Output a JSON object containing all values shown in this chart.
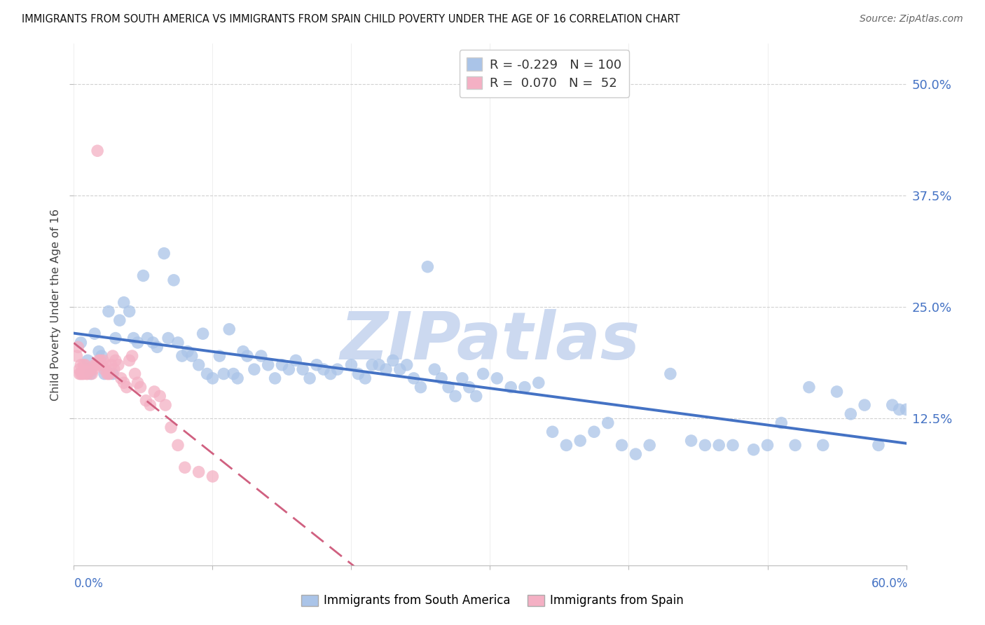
{
  "title": "IMMIGRANTS FROM SOUTH AMERICA VS IMMIGRANTS FROM SPAIN CHILD POVERTY UNDER THE AGE OF 16 CORRELATION CHART",
  "source": "Source: ZipAtlas.com",
  "ylabel": "Child Poverty Under the Age of 16",
  "ytick_labels": [
    "12.5%",
    "25.0%",
    "37.5%",
    "50.0%"
  ],
  "ytick_values": [
    0.125,
    0.25,
    0.375,
    0.5
  ],
  "xmin": 0.0,
  "xmax": 0.6,
  "ymin": -0.04,
  "ymax": 0.545,
  "color_blue": "#aac4e8",
  "color_blue_line": "#4472c4",
  "color_pink": "#f4b0c4",
  "color_pink_line": "#d06080",
  "watermark": "ZIPatlas",
  "watermark_color": "#ccd9f0",
  "legend_label1": "Immigrants from South America",
  "legend_label2": "Immigrants from Spain",
  "legend_r1": "-0.229",
  "legend_n1": "100",
  "legend_r2": "0.070",
  "legend_n2": "52",
  "blue_scatter_x": [
    0.005,
    0.01,
    0.012,
    0.015,
    0.018,
    0.02,
    0.022,
    0.025,
    0.028,
    0.03,
    0.033,
    0.036,
    0.04,
    0.043,
    0.046,
    0.05,
    0.053,
    0.057,
    0.06,
    0.065,
    0.068,
    0.072,
    0.075,
    0.078,
    0.082,
    0.085,
    0.09,
    0.093,
    0.096,
    0.1,
    0.105,
    0.108,
    0.112,
    0.115,
    0.118,
    0.122,
    0.125,
    0.13,
    0.135,
    0.14,
    0.145,
    0.15,
    0.155,
    0.16,
    0.165,
    0.17,
    0.175,
    0.18,
    0.185,
    0.19,
    0.2,
    0.205,
    0.21,
    0.215,
    0.22,
    0.225,
    0.23,
    0.235,
    0.24,
    0.245,
    0.25,
    0.255,
    0.26,
    0.265,
    0.27,
    0.275,
    0.28,
    0.285,
    0.29,
    0.295,
    0.305,
    0.315,
    0.325,
    0.335,
    0.345,
    0.355,
    0.365,
    0.375,
    0.385,
    0.395,
    0.405,
    0.415,
    0.43,
    0.445,
    0.455,
    0.465,
    0.475,
    0.49,
    0.5,
    0.51,
    0.52,
    0.53,
    0.54,
    0.55,
    0.56,
    0.57,
    0.58,
    0.59,
    0.595,
    0.6
  ],
  "blue_scatter_y": [
    0.21,
    0.19,
    0.175,
    0.22,
    0.2,
    0.195,
    0.175,
    0.245,
    0.175,
    0.215,
    0.235,
    0.255,
    0.245,
    0.215,
    0.21,
    0.285,
    0.215,
    0.21,
    0.205,
    0.31,
    0.215,
    0.28,
    0.21,
    0.195,
    0.2,
    0.195,
    0.185,
    0.22,
    0.175,
    0.17,
    0.195,
    0.175,
    0.225,
    0.175,
    0.17,
    0.2,
    0.195,
    0.18,
    0.195,
    0.185,
    0.17,
    0.185,
    0.18,
    0.19,
    0.18,
    0.17,
    0.185,
    0.18,
    0.175,
    0.18,
    0.185,
    0.175,
    0.17,
    0.185,
    0.185,
    0.18,
    0.19,
    0.18,
    0.185,
    0.17,
    0.16,
    0.295,
    0.18,
    0.17,
    0.16,
    0.15,
    0.17,
    0.16,
    0.15,
    0.175,
    0.17,
    0.16,
    0.16,
    0.165,
    0.11,
    0.095,
    0.1,
    0.11,
    0.12,
    0.095,
    0.085,
    0.095,
    0.175,
    0.1,
    0.095,
    0.095,
    0.095,
    0.09,
    0.095,
    0.12,
    0.095,
    0.16,
    0.095,
    0.155,
    0.13,
    0.14,
    0.095,
    0.14,
    0.135,
    0.135
  ],
  "pink_scatter_x": [
    0.002,
    0.003,
    0.004,
    0.004,
    0.005,
    0.005,
    0.006,
    0.007,
    0.007,
    0.008,
    0.008,
    0.009,
    0.01,
    0.011,
    0.012,
    0.013,
    0.014,
    0.015,
    0.016,
    0.017,
    0.018,
    0.019,
    0.02,
    0.021,
    0.022,
    0.023,
    0.024,
    0.025,
    0.026,
    0.027,
    0.028,
    0.029,
    0.03,
    0.032,
    0.034,
    0.036,
    0.038,
    0.04,
    0.042,
    0.044,
    0.046,
    0.048,
    0.052,
    0.055,
    0.058,
    0.062,
    0.066,
    0.07,
    0.075,
    0.08,
    0.09,
    0.1
  ],
  "pink_scatter_y": [
    0.195,
    0.205,
    0.18,
    0.175,
    0.175,
    0.185,
    0.175,
    0.175,
    0.185,
    0.185,
    0.18,
    0.175,
    0.175,
    0.18,
    0.18,
    0.175,
    0.18,
    0.185,
    0.185,
    0.425,
    0.19,
    0.19,
    0.185,
    0.19,
    0.18,
    0.185,
    0.175,
    0.175,
    0.175,
    0.185,
    0.195,
    0.18,
    0.19,
    0.185,
    0.17,
    0.165,
    0.16,
    0.19,
    0.195,
    0.175,
    0.165,
    0.16,
    0.145,
    0.14,
    0.155,
    0.15,
    0.14,
    0.115,
    0.095,
    0.07,
    0.065,
    0.06
  ],
  "blue_line_x0": 0.0,
  "blue_line_x1": 0.6,
  "blue_line_y0": 0.198,
  "blue_line_y1": 0.128,
  "pink_line_x0": 0.0,
  "pink_line_x1": 0.1,
  "pink_line_y0": 0.165,
  "pink_line_y1": 0.185
}
